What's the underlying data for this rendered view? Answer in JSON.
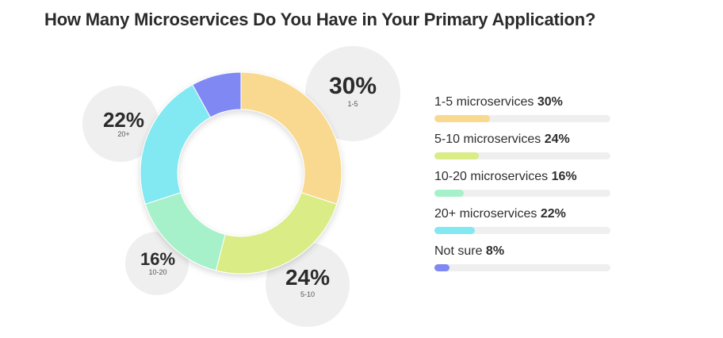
{
  "chart_data": {
    "type": "pie",
    "title": "How Many Microservices Do You Have in Your Primary Application?",
    "slices": [
      {
        "category": "1-5",
        "legend_label": "1-5 microservices",
        "value": 30,
        "pct_label": "30%",
        "color": "#f9d98f"
      },
      {
        "category": "5-10",
        "legend_label": "5-10 microservices",
        "value": 24,
        "pct_label": "24%",
        "color": "#d9ec86"
      },
      {
        "category": "10-20",
        "legend_label": "10-20 microservices",
        "value": 16,
        "pct_label": "16%",
        "color": "#a6f1c9"
      },
      {
        "category": "20+",
        "legend_label": "20+ microservices",
        "value": 22,
        "pct_label": "22%",
        "color": "#82e8f2"
      },
      {
        "category": "Not sure",
        "legend_label": "Not sure",
        "value": 8,
        "pct_label": "8%",
        "color": "#7f88f3"
      }
    ]
  }
}
